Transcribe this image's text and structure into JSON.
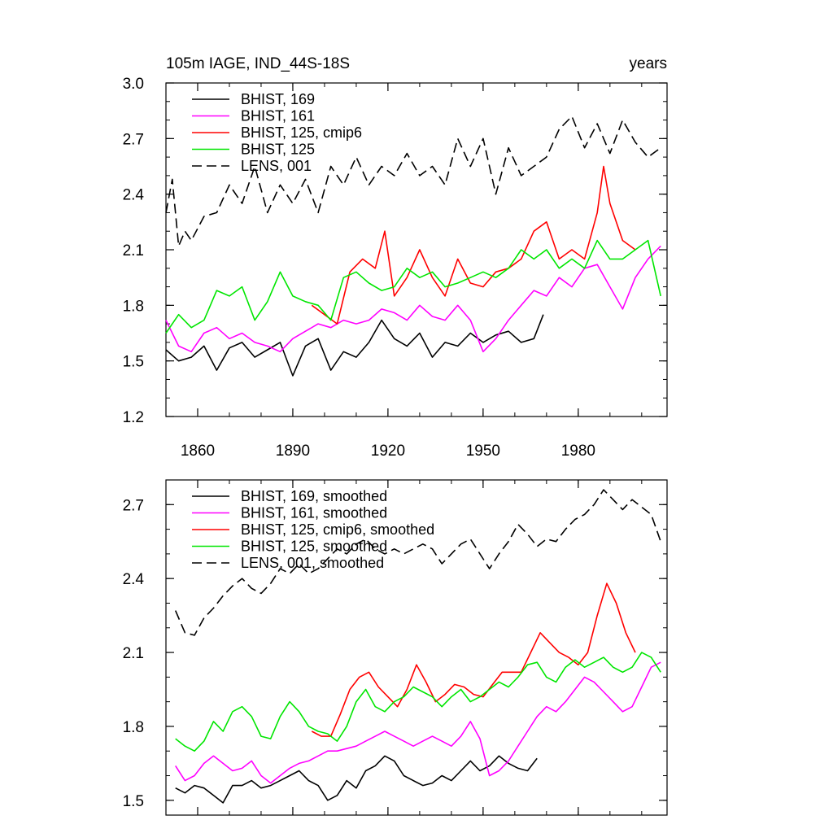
{
  "figure": {
    "title_left": "105m IAGE, IND_44S-18S",
    "title_right": "years"
  },
  "chart_data": [
    {
      "type": "line",
      "title": "105m IAGE, IND_44S-18S",
      "units_label": "years",
      "xlim": [
        1850,
        2008
      ],
      "ylim": [
        1.2,
        3.0
      ],
      "xticks": [
        1860,
        1890,
        1920,
        1950,
        1980
      ],
      "xtick_labels": [
        "1860",
        "1890",
        "1920",
        "1950",
        "1980"
      ],
      "yticks": [
        1.2,
        1.5,
        1.8,
        2.1,
        2.4,
        2.7,
        3.0
      ],
      "ytick_labels": [
        "1.2",
        "1.5",
        "1.8",
        "2.1",
        "2.4",
        "2.7",
        "3.0"
      ],
      "grid": false,
      "legend_position": "top-left",
      "series": [
        {
          "name": "BHIST, 169",
          "color": "#000000",
          "dash": "solid",
          "x": [
            1850,
            1854,
            1858,
            1862,
            1866,
            1870,
            1874,
            1878,
            1882,
            1886,
            1890,
            1894,
            1898,
            1902,
            1906,
            1910,
            1914,
            1918,
            1922,
            1926,
            1930,
            1934,
            1938,
            1942,
            1946,
            1950,
            1954,
            1958,
            1962,
            1966,
            1969
          ],
          "y": [
            1.56,
            1.5,
            1.52,
            1.58,
            1.45,
            1.57,
            1.6,
            1.52,
            1.56,
            1.6,
            1.42,
            1.58,
            1.62,
            1.45,
            1.55,
            1.52,
            1.6,
            1.72,
            1.62,
            1.58,
            1.65,
            1.52,
            1.6,
            1.58,
            1.65,
            1.6,
            1.64,
            1.66,
            1.6,
            1.62,
            1.75
          ]
        },
        {
          "name": "BHIST, 161",
          "color": "#ff00ff",
          "dash": "solid",
          "x": [
            1850,
            1854,
            1858,
            1862,
            1866,
            1870,
            1874,
            1878,
            1882,
            1886,
            1890,
            1894,
            1898,
            1902,
            1906,
            1910,
            1914,
            1918,
            1922,
            1926,
            1930,
            1934,
            1938,
            1942,
            1946,
            1950,
            1954,
            1958,
            1962,
            1966,
            1970,
            1974,
            1978,
            1982,
            1986,
            1990,
            1994,
            1998,
            2002,
            2006
          ],
          "y": [
            1.72,
            1.58,
            1.55,
            1.65,
            1.68,
            1.62,
            1.65,
            1.6,
            1.58,
            1.55,
            1.62,
            1.66,
            1.7,
            1.68,
            1.72,
            1.7,
            1.72,
            1.78,
            1.76,
            1.72,
            1.8,
            1.74,
            1.72,
            1.8,
            1.72,
            1.55,
            1.62,
            1.72,
            1.8,
            1.88,
            1.85,
            1.95,
            1.9,
            2.0,
            2.02,
            1.9,
            1.78,
            1.95,
            2.05,
            2.12
          ]
        },
        {
          "name": "BHIST, 125, cmip6",
          "color": "#ff0000",
          "dash": "solid",
          "x": [
            1896,
            1900,
            1904,
            1908,
            1912,
            1916,
            1919,
            1922,
            1926,
            1930,
            1934,
            1938,
            1942,
            1946,
            1950,
            1954,
            1958,
            1962,
            1966,
            1970,
            1974,
            1978,
            1982,
            1986,
            1988,
            1990,
            1994,
            1998
          ],
          "y": [
            1.8,
            1.75,
            1.7,
            1.98,
            2.05,
            2.0,
            2.2,
            1.85,
            1.95,
            2.1,
            1.95,
            1.85,
            2.05,
            1.92,
            1.9,
            1.98,
            2.0,
            2.05,
            2.2,
            2.25,
            2.05,
            2.1,
            2.05,
            2.3,
            2.55,
            2.35,
            2.15,
            2.1
          ]
        },
        {
          "name": "BHIST, 125",
          "color": "#00e600",
          "dash": "solid",
          "x": [
            1850,
            1854,
            1858,
            1862,
            1866,
            1870,
            1874,
            1878,
            1882,
            1886,
            1890,
            1894,
            1898,
            1902,
            1906,
            1910,
            1914,
            1918,
            1922,
            1926,
            1930,
            1934,
            1938,
            1942,
            1946,
            1950,
            1954,
            1958,
            1962,
            1966,
            1970,
            1974,
            1978,
            1982,
            1986,
            1990,
            1994,
            1998,
            2002,
            2006
          ],
          "y": [
            1.65,
            1.75,
            1.68,
            1.72,
            1.88,
            1.85,
            1.9,
            1.72,
            1.82,
            1.98,
            1.85,
            1.82,
            1.8,
            1.72,
            1.95,
            1.98,
            1.92,
            1.88,
            1.9,
            2.0,
            1.95,
            1.98,
            1.9,
            1.92,
            1.95,
            1.98,
            1.95,
            2.0,
            2.1,
            2.05,
            2.1,
            2.0,
            2.05,
            2.0,
            2.15,
            2.05,
            2.05,
            2.1,
            2.15,
            1.85
          ]
        },
        {
          "name": "LENS, 001",
          "color": "#000000",
          "dash": "dashed",
          "x": [
            1850,
            1852,
            1854,
            1856,
            1858,
            1862,
            1866,
            1870,
            1874,
            1878,
            1882,
            1886,
            1890,
            1894,
            1898,
            1902,
            1906,
            1910,
            1914,
            1918,
            1922,
            1926,
            1930,
            1934,
            1938,
            1942,
            1946,
            1950,
            1954,
            1958,
            1962,
            1966,
            1970,
            1974,
            1978,
            1982,
            1986,
            1990,
            1994,
            1998,
            2002,
            2006
          ],
          "y": [
            2.3,
            2.48,
            2.12,
            2.2,
            2.15,
            2.28,
            2.3,
            2.45,
            2.35,
            2.55,
            2.3,
            2.45,
            2.35,
            2.48,
            2.3,
            2.55,
            2.45,
            2.6,
            2.45,
            2.55,
            2.5,
            2.62,
            2.5,
            2.55,
            2.45,
            2.7,
            2.55,
            2.7,
            2.4,
            2.65,
            2.5,
            2.55,
            2.6,
            2.75,
            2.82,
            2.65,
            2.78,
            2.62,
            2.8,
            2.68,
            2.6,
            2.65
          ]
        }
      ]
    },
    {
      "type": "line",
      "xlim": [
        1850,
        2008
      ],
      "ylim": [
        1.44,
        2.8
      ],
      "xticks": [
        1860,
        1890,
        1920,
        1950,
        1980
      ],
      "yticks": [
        1.5,
        1.8,
        2.1,
        2.4,
        2.7
      ],
      "ytick_labels": [
        "1.5",
        "1.8",
        "2.1",
        "2.4",
        "2.7"
      ],
      "grid": false,
      "legend_position": "top-left",
      "series": [
        {
          "name": "BHIST, 169, smoothed",
          "color": "#000000",
          "dash": "solid",
          "x": [
            1853,
            1856,
            1859,
            1862,
            1865,
            1868,
            1871,
            1874,
            1877,
            1880,
            1883,
            1886,
            1889,
            1892,
            1895,
            1898,
            1901,
            1904,
            1907,
            1910,
            1913,
            1916,
            1919,
            1922,
            1925,
            1928,
            1931,
            1934,
            1937,
            1940,
            1943,
            1946,
            1949,
            1952,
            1955,
            1958,
            1961,
            1964,
            1967
          ],
          "y": [
            1.55,
            1.53,
            1.56,
            1.55,
            1.52,
            1.49,
            1.56,
            1.56,
            1.58,
            1.55,
            1.56,
            1.58,
            1.6,
            1.62,
            1.58,
            1.56,
            1.5,
            1.52,
            1.58,
            1.55,
            1.62,
            1.64,
            1.68,
            1.66,
            1.6,
            1.58,
            1.56,
            1.57,
            1.6,
            1.58,
            1.62,
            1.66,
            1.62,
            1.64,
            1.68,
            1.65,
            1.63,
            1.62,
            1.67
          ]
        },
        {
          "name": "BHIST, 161, smoothed",
          "color": "#ff00ff",
          "dash": "solid",
          "x": [
            1853,
            1856,
            1859,
            1862,
            1865,
            1868,
            1871,
            1874,
            1877,
            1880,
            1883,
            1886,
            1889,
            1892,
            1895,
            1898,
            1901,
            1904,
            1907,
            1910,
            1913,
            1916,
            1919,
            1922,
            1925,
            1928,
            1931,
            1934,
            1937,
            1940,
            1943,
            1946,
            1949,
            1952,
            1955,
            1958,
            1961,
            1964,
            1967,
            1970,
            1973,
            1976,
            1979,
            1982,
            1985,
            1988,
            1991,
            1994,
            1997,
            2000,
            2003,
            2006
          ],
          "y": [
            1.64,
            1.58,
            1.6,
            1.65,
            1.68,
            1.65,
            1.62,
            1.63,
            1.66,
            1.6,
            1.57,
            1.6,
            1.63,
            1.65,
            1.66,
            1.68,
            1.7,
            1.7,
            1.71,
            1.72,
            1.74,
            1.76,
            1.78,
            1.76,
            1.74,
            1.72,
            1.74,
            1.76,
            1.74,
            1.72,
            1.76,
            1.82,
            1.75,
            1.6,
            1.62,
            1.66,
            1.72,
            1.78,
            1.84,
            1.88,
            1.86,
            1.9,
            1.95,
            2.0,
            1.98,
            1.94,
            1.9,
            1.86,
            1.88,
            1.96,
            2.04,
            2.06
          ]
        },
        {
          "name": "BHIST, 125, cmip6, smoothed",
          "color": "#ff0000",
          "dash": "solid",
          "x": [
            1896,
            1899,
            1902,
            1905,
            1908,
            1911,
            1914,
            1917,
            1920,
            1923,
            1926,
            1929,
            1932,
            1935,
            1938,
            1941,
            1944,
            1947,
            1950,
            1953,
            1956,
            1959,
            1962,
            1965,
            1968,
            1971,
            1974,
            1977,
            1980,
            1983,
            1986,
            1989,
            1992,
            1995,
            1998
          ],
          "y": [
            1.78,
            1.76,
            1.76,
            1.85,
            1.95,
            2.0,
            2.02,
            1.96,
            1.92,
            1.88,
            1.95,
            2.05,
            1.98,
            1.9,
            1.93,
            1.97,
            1.96,
            1.93,
            1.92,
            1.97,
            2.02,
            2.02,
            2.02,
            2.1,
            2.18,
            2.14,
            2.1,
            2.08,
            2.05,
            2.1,
            2.25,
            2.38,
            2.3,
            2.18,
            2.1
          ]
        },
        {
          "name": "BHIST, 125, smoothed",
          "color": "#00e600",
          "dash": "solid",
          "x": [
            1853,
            1856,
            1859,
            1862,
            1865,
            1868,
            1871,
            1874,
            1877,
            1880,
            1883,
            1886,
            1889,
            1892,
            1895,
            1898,
            1901,
            1904,
            1907,
            1910,
            1913,
            1916,
            1919,
            1922,
            1925,
            1928,
            1931,
            1934,
            1937,
            1940,
            1943,
            1946,
            1949,
            1952,
            1955,
            1958,
            1961,
            1964,
            1967,
            1970,
            1973,
            1976,
            1979,
            1982,
            1985,
            1988,
            1991,
            1994,
            1997,
            2000,
            2003,
            2006
          ],
          "y": [
            1.75,
            1.72,
            1.7,
            1.74,
            1.82,
            1.78,
            1.86,
            1.88,
            1.84,
            1.76,
            1.75,
            1.84,
            1.9,
            1.86,
            1.8,
            1.78,
            1.77,
            1.74,
            1.8,
            1.9,
            1.95,
            1.88,
            1.86,
            1.9,
            1.92,
            1.96,
            1.94,
            1.92,
            1.88,
            1.92,
            1.95,
            1.9,
            1.92,
            1.95,
            1.98,
            1.96,
            2.0,
            2.05,
            2.06,
            2.0,
            1.98,
            2.04,
            2.07,
            2.04,
            2.06,
            2.08,
            2.04,
            2.02,
            2.04,
            2.1,
            2.08,
            2.02
          ]
        },
        {
          "name": "LENS, 001, smoothed",
          "color": "#000000",
          "dash": "dashed",
          "x": [
            1853,
            1856,
            1859,
            1862,
            1865,
            1868,
            1871,
            1874,
            1877,
            1880,
            1883,
            1886,
            1889,
            1892,
            1895,
            1898,
            1901,
            1904,
            1907,
            1910,
            1913,
            1916,
            1919,
            1922,
            1925,
            1928,
            1931,
            1934,
            1937,
            1940,
            1943,
            1946,
            1949,
            1952,
            1955,
            1958,
            1961,
            1964,
            1967,
            1970,
            1973,
            1976,
            1979,
            1982,
            1985,
            1988,
            1991,
            1994,
            1997,
            2000,
            2003,
            2006
          ],
          "y": [
            2.27,
            2.18,
            2.17,
            2.24,
            2.28,
            2.33,
            2.37,
            2.4,
            2.36,
            2.34,
            2.38,
            2.44,
            2.42,
            2.46,
            2.42,
            2.44,
            2.48,
            2.52,
            2.5,
            2.54,
            2.56,
            2.52,
            2.5,
            2.52,
            2.5,
            2.52,
            2.54,
            2.52,
            2.46,
            2.5,
            2.54,
            2.56,
            2.5,
            2.44,
            2.5,
            2.55,
            2.62,
            2.58,
            2.53,
            2.56,
            2.55,
            2.6,
            2.64,
            2.66,
            2.7,
            2.76,
            2.72,
            2.68,
            2.72,
            2.69,
            2.66,
            2.55
          ]
        }
      ]
    }
  ]
}
